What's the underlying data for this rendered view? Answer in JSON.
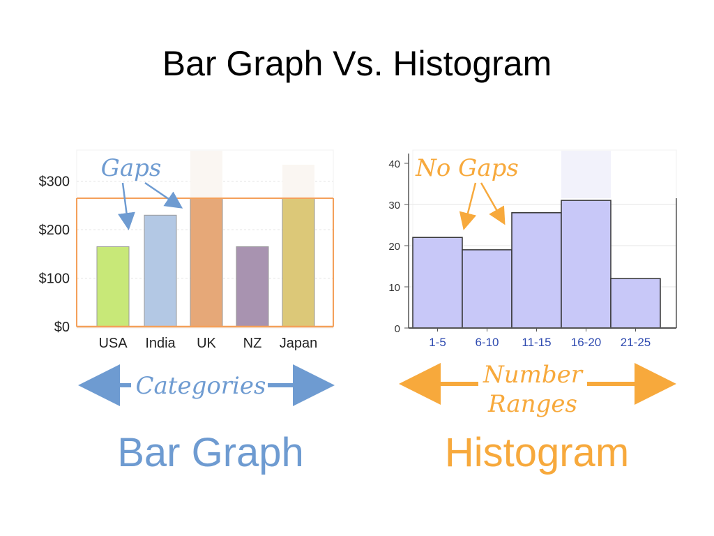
{
  "title": "Bar Graph Vs. Histogram",
  "colors": {
    "bar_accent": "#f4a05a",
    "histogram_fill": "#c8c8f8",
    "blue_label": "#6e9bd1",
    "orange_label": "#f7a93c",
    "bin_label": "#2f4bb0"
  },
  "chart_data": [
    {
      "type": "bar",
      "categories": [
        "USA",
        "India",
        "UK",
        "NZ",
        "Japan"
      ],
      "values": [
        165,
        230,
        265,
        165,
        265
      ],
      "colors": [
        "#c8e878",
        "#b3c8e4",
        "#e6a878",
        "#a893b0",
        "#dcc878"
      ],
      "yticks": [
        "$0",
        "$100",
        "$200",
        "$300"
      ],
      "ylim": [
        0,
        350
      ],
      "annotation": "Gaps",
      "arrow_label": "Categories",
      "caption": "Bar Graph"
    },
    {
      "type": "bar",
      "categories": [
        "1-5",
        "6-10",
        "11-15",
        "16-20",
        "21-25"
      ],
      "values": [
        22,
        19,
        28,
        31,
        12
      ],
      "yticks": [
        "0",
        "10",
        "20",
        "30",
        "40"
      ],
      "ylim": [
        0,
        40
      ],
      "annotation": "No Gaps",
      "arrow_label_lines": [
        "Number",
        "Ranges"
      ],
      "caption": "Histogram"
    }
  ]
}
